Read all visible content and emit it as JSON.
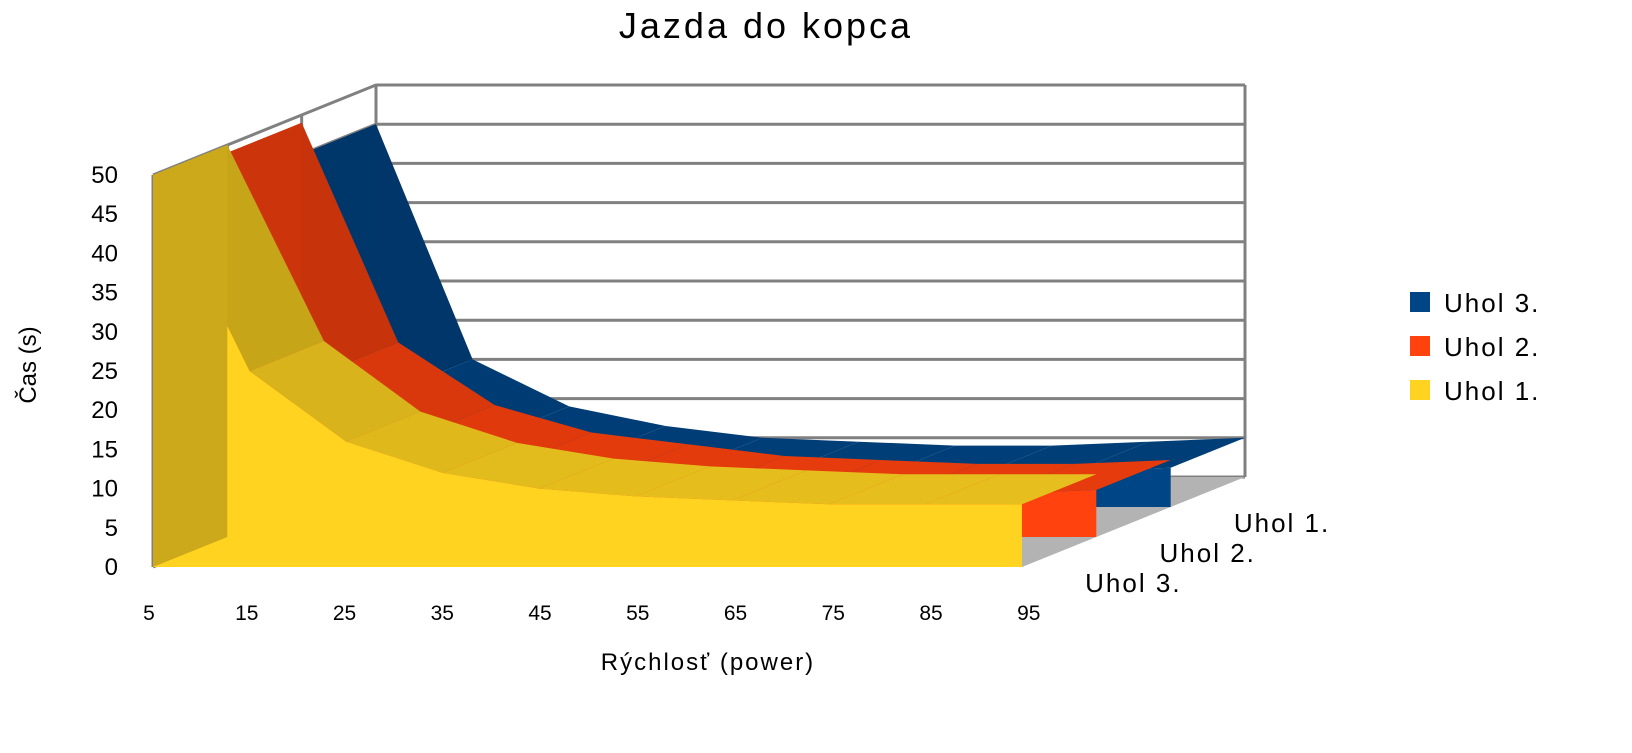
{
  "chart_data": {
    "type": "area",
    "title": "Jazda do kopca",
    "xlabel": "Rýchlosť (power)",
    "ylabel": "Čas (s)",
    "categories": [
      "5",
      "15",
      "25",
      "35",
      "45",
      "55",
      "65",
      "75",
      "85",
      "95"
    ],
    "ylim": [
      0,
      50
    ],
    "yticks": [
      "0",
      "5",
      "10",
      "15",
      "20",
      "25",
      "30",
      "35",
      "40",
      "45",
      "50"
    ],
    "grid": true,
    "legend_position": "right",
    "depth_labels": [
      "Uhol 1.",
      "Uhol 2.",
      "Uhol 3."
    ],
    "series": [
      {
        "name": "Uhol 3.",
        "color": "#004586",
        "values": [
          45,
          15,
          9,
          6.5,
          5,
          4.5,
          4,
          4,
          4.5,
          5
        ]
      },
      {
        "name": "Uhol 2.",
        "color": "#ff420e",
        "values": [
          49,
          21,
          13,
          9.5,
          8,
          6.5,
          6,
          5.5,
          5.5,
          6
        ]
      },
      {
        "name": "Uhol 1.",
        "color": "#ffd320",
        "values": [
          50,
          25,
          16,
          12,
          10,
          9,
          8.5,
          8,
          8,
          8
        ]
      }
    ],
    "colors": {
      "floor": "#b3b3b3",
      "wall": "#ffffff",
      "grid": "#808080"
    }
  }
}
